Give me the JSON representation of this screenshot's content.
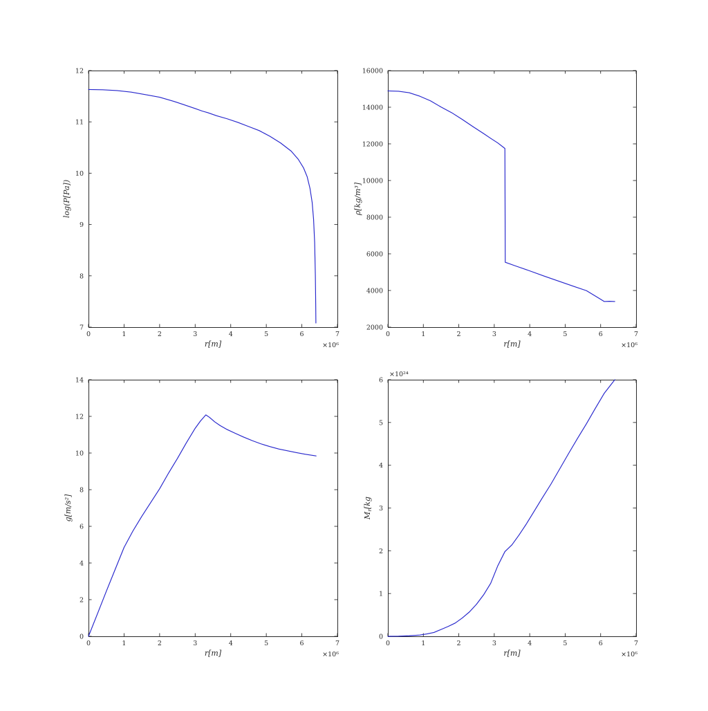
{
  "figure": {
    "background_color": "#ffffff",
    "line_color": "#2525cc",
    "frame_color": "#2a2a2a",
    "text_color": "#2a2a2a"
  },
  "chart_data": [
    {
      "id": "pressure",
      "type": "line",
      "position": "top-left",
      "title": "",
      "xlabel": "r[m]",
      "ylabel": "log(P[Pa])",
      "x_offset_text": "×10⁶",
      "y_offset_text": "",
      "xlim": [
        0,
        7
      ],
      "ylim": [
        7,
        12
      ],
      "x_units_note": "x values in 10^6 m",
      "xticks": [
        0,
        1,
        2,
        3,
        4,
        5,
        6,
        7
      ],
      "xtick_labels": [
        "0",
        "1",
        "2",
        "3",
        "4",
        "5",
        "6",
        "7"
      ],
      "yticks": [
        7,
        8,
        9,
        10,
        11,
        12
      ],
      "ytick_labels": [
        "7",
        "8",
        "9",
        "10",
        "11",
        "12"
      ],
      "grid": false,
      "legend": null,
      "series": [
        {
          "name": "log-pressure-profile",
          "points": [
            [
              0,
              11.63
            ],
            [
              0.4,
              11.625
            ],
            [
              0.8,
              11.61
            ],
            [
              1.2,
              11.58
            ],
            [
              1.6,
              11.53
            ],
            [
              2.0,
              11.48
            ],
            [
              2.4,
              11.4
            ],
            [
              2.7,
              11.33
            ],
            [
              3.0,
              11.26
            ],
            [
              3.2,
              11.21
            ],
            [
              3.35,
              11.18
            ],
            [
              3.6,
              11.12
            ],
            [
              3.9,
              11.06
            ],
            [
              4.2,
              10.99
            ],
            [
              4.5,
              10.91
            ],
            [
              4.8,
              10.83
            ],
            [
              5.1,
              10.72
            ],
            [
              5.4,
              10.59
            ],
            [
              5.7,
              10.43
            ],
            [
              5.9,
              10.27
            ],
            [
              6.05,
              10.1
            ],
            [
              6.15,
              9.93
            ],
            [
              6.23,
              9.7
            ],
            [
              6.29,
              9.43
            ],
            [
              6.33,
              9.1
            ],
            [
              6.36,
              8.65
            ],
            [
              6.38,
              8.0
            ],
            [
              6.39,
              7.45
            ],
            [
              6.395,
              7.08
            ]
          ]
        }
      ]
    },
    {
      "id": "density",
      "type": "line",
      "position": "top-right",
      "title": "",
      "xlabel": "r[m]",
      "ylabel": "ρ[kg/m³]",
      "x_offset_text": "×10⁶",
      "y_offset_text": "",
      "xlim": [
        0,
        7
      ],
      "ylim": [
        2000,
        16000
      ],
      "x_units_note": "x values in 10^6 m",
      "xticks": [
        0,
        1,
        2,
        3,
        4,
        5,
        6,
        7
      ],
      "xtick_labels": [
        "0",
        "1",
        "2",
        "3",
        "4",
        "5",
        "6",
        "7"
      ],
      "yticks": [
        2000,
        4000,
        6000,
        8000,
        10000,
        12000,
        14000,
        16000
      ],
      "ytick_labels": [
        "2000",
        "4000",
        "6000",
        "8000",
        "10000",
        "12000",
        "14000",
        "16000"
      ],
      "grid": false,
      "legend": null,
      "series": [
        {
          "name": "density-profile",
          "points": [
            [
              0,
              14890
            ],
            [
              0.3,
              14870
            ],
            [
              0.6,
              14790
            ],
            [
              0.9,
              14600
            ],
            [
              1.2,
              14350
            ],
            [
              1.5,
              14010
            ],
            [
              1.8,
              13700
            ],
            [
              2.1,
              13330
            ],
            [
              2.4,
              12940
            ],
            [
              2.7,
              12560
            ],
            [
              2.9,
              12300
            ],
            [
              3.1,
              12050
            ],
            [
              3.3,
              11750
            ],
            [
              3.31,
              5540
            ],
            [
              3.6,
              5340
            ],
            [
              4.0,
              5070
            ],
            [
              4.4,
              4790
            ],
            [
              4.8,
              4520
            ],
            [
              5.25,
              4220
            ],
            [
              5.6,
              3990
            ],
            [
              5.95,
              3580
            ],
            [
              6.1,
              3400
            ],
            [
              6.25,
              3410
            ],
            [
              6.4,
              3400
            ]
          ]
        }
      ]
    },
    {
      "id": "gravity",
      "type": "line",
      "position": "bottom-left",
      "title": "",
      "xlabel": "r[m]",
      "ylabel": "g[m/s²]",
      "x_offset_text": "×10⁶",
      "y_offset_text": "",
      "xlim": [
        0,
        7
      ],
      "ylim": [
        0,
        14
      ],
      "x_units_note": "x values in 10^6 m",
      "xticks": [
        0,
        1,
        2,
        3,
        4,
        5,
        6,
        7
      ],
      "xtick_labels": [
        "0",
        "1",
        "2",
        "3",
        "4",
        "5",
        "6",
        "7"
      ],
      "yticks": [
        0,
        2,
        4,
        6,
        8,
        10,
        12,
        14
      ],
      "ytick_labels": [
        "0",
        "2",
        "4",
        "6",
        "8",
        "10",
        "12",
        "14"
      ],
      "grid": false,
      "legend": null,
      "series": [
        {
          "name": "gravity-profile",
          "points": [
            [
              0,
              0
            ],
            [
              0.25,
              1.22
            ],
            [
              0.5,
              2.45
            ],
            [
              0.75,
              3.65
            ],
            [
              1.0,
              4.85
            ],
            [
              1.25,
              5.75
            ],
            [
              1.5,
              6.55
            ],
            [
              1.75,
              7.3
            ],
            [
              2.0,
              8.05
            ],
            [
              2.25,
              8.9
            ],
            [
              2.5,
              9.7
            ],
            [
              2.75,
              10.55
            ],
            [
              3.0,
              11.35
            ],
            [
              3.15,
              11.75
            ],
            [
              3.3,
              12.08
            ],
            [
              3.4,
              11.95
            ],
            [
              3.55,
              11.7
            ],
            [
              3.7,
              11.5
            ],
            [
              3.9,
              11.28
            ],
            [
              4.1,
              11.1
            ],
            [
              4.35,
              10.88
            ],
            [
              4.6,
              10.68
            ],
            [
              4.85,
              10.5
            ],
            [
              5.1,
              10.35
            ],
            [
              5.35,
              10.22
            ],
            [
              5.6,
              10.12
            ],
            [
              5.85,
              10.02
            ],
            [
              6.1,
              9.93
            ],
            [
              6.4,
              9.84
            ]
          ]
        }
      ]
    },
    {
      "id": "enclosed-mass",
      "type": "line",
      "position": "bottom-right",
      "title": "",
      "xlabel": "r[m]",
      "ylabel": "M_r[kg",
      "x_offset_text": "×10⁶",
      "y_offset_text": "×10²⁴",
      "xlim": [
        0,
        7
      ],
      "ylim": [
        0,
        6
      ],
      "x_units_note": "x values in 10^6 m, y values in 10^24 kg",
      "xticks": [
        0,
        1,
        2,
        3,
        4,
        5,
        6,
        7
      ],
      "xtick_labels": [
        "0",
        "1",
        "2",
        "3",
        "4",
        "5",
        "6",
        "7"
      ],
      "yticks": [
        0,
        1,
        2,
        3,
        4,
        5,
        6
      ],
      "ytick_labels": [
        "0",
        "1",
        "2",
        "3",
        "4",
        "5",
        "6"
      ],
      "grid": false,
      "legend": null,
      "series": [
        {
          "name": "enclosed-mass-profile",
          "points": [
            [
              0,
              0
            ],
            [
              0.3,
              0.003
            ],
            [
              0.6,
              0.012
            ],
            [
              0.9,
              0.03
            ],
            [
              1.1,
              0.055
            ],
            [
              1.3,
              0.09
            ],
            [
              1.5,
              0.16
            ],
            [
              1.7,
              0.23
            ],
            [
              1.9,
              0.31
            ],
            [
              2.1,
              0.43
            ],
            [
              2.3,
              0.57
            ],
            [
              2.5,
              0.75
            ],
            [
              2.7,
              0.97
            ],
            [
              2.9,
              1.24
            ],
            [
              3.1,
              1.65
            ],
            [
              3.3,
              1.98
            ],
            [
              3.5,
              2.14
            ],
            [
              3.7,
              2.37
            ],
            [
              3.9,
              2.62
            ],
            [
              4.1,
              2.89
            ],
            [
              4.35,
              3.23
            ],
            [
              4.6,
              3.56
            ],
            [
              4.85,
              3.92
            ],
            [
              5.1,
              4.28
            ],
            [
              5.35,
              4.63
            ],
            [
              5.6,
              4.97
            ],
            [
              5.85,
              5.33
            ],
            [
              6.1,
              5.68
            ],
            [
              6.4,
              6.0
            ]
          ]
        }
      ]
    }
  ]
}
